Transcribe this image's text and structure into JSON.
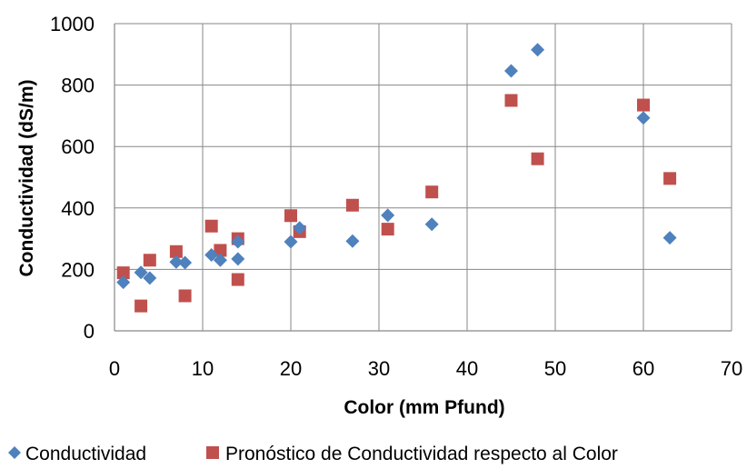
{
  "chart_data": {
    "type": "scatter",
    "title": "",
    "xlabel": "Color (mm Pfund)",
    "ylabel": "Conductividad (dS/m)",
    "xlim": [
      0,
      70
    ],
    "ylim": [
      0,
      1000
    ],
    "x_ticks": [
      "0",
      "10",
      "20",
      "30",
      "40",
      "50",
      "60",
      "70"
    ],
    "y_ticks": [
      "0",
      "200",
      "400",
      "600",
      "800",
      "1000"
    ],
    "grid": true,
    "legend_position": "bottom",
    "series": [
      {
        "name": "Conductividad",
        "marker": "diamond",
        "color": "#4F81BD",
        "points": [
          [
            1,
            158
          ],
          [
            3,
            190
          ],
          [
            4,
            172
          ],
          [
            7,
            224
          ],
          [
            8,
            222
          ],
          [
            11,
            247
          ],
          [
            12,
            230
          ],
          [
            14,
            290
          ],
          [
            14,
            234
          ],
          [
            20,
            290
          ],
          [
            21,
            335
          ],
          [
            27,
            292
          ],
          [
            31,
            376
          ],
          [
            36,
            347
          ],
          [
            45,
            846
          ],
          [
            48,
            915
          ],
          [
            60,
            693
          ],
          [
            63,
            303
          ]
        ]
      },
      {
        "name": "Pronóstico de Conductividad respecto al Color",
        "marker": "square",
        "color": "#C0504D",
        "points": [
          [
            1,
            189
          ],
          [
            3,
            81
          ],
          [
            4,
            230
          ],
          [
            7,
            258
          ],
          [
            8,
            114
          ],
          [
            11,
            341
          ],
          [
            12,
            262
          ],
          [
            14,
            300
          ],
          [
            14,
            167
          ],
          [
            20,
            375
          ],
          [
            21,
            323
          ],
          [
            27,
            409
          ],
          [
            31,
            331
          ],
          [
            36,
            452
          ],
          [
            45,
            750
          ],
          [
            48,
            560
          ],
          [
            60,
            735
          ],
          [
            63,
            496
          ]
        ]
      }
    ]
  }
}
